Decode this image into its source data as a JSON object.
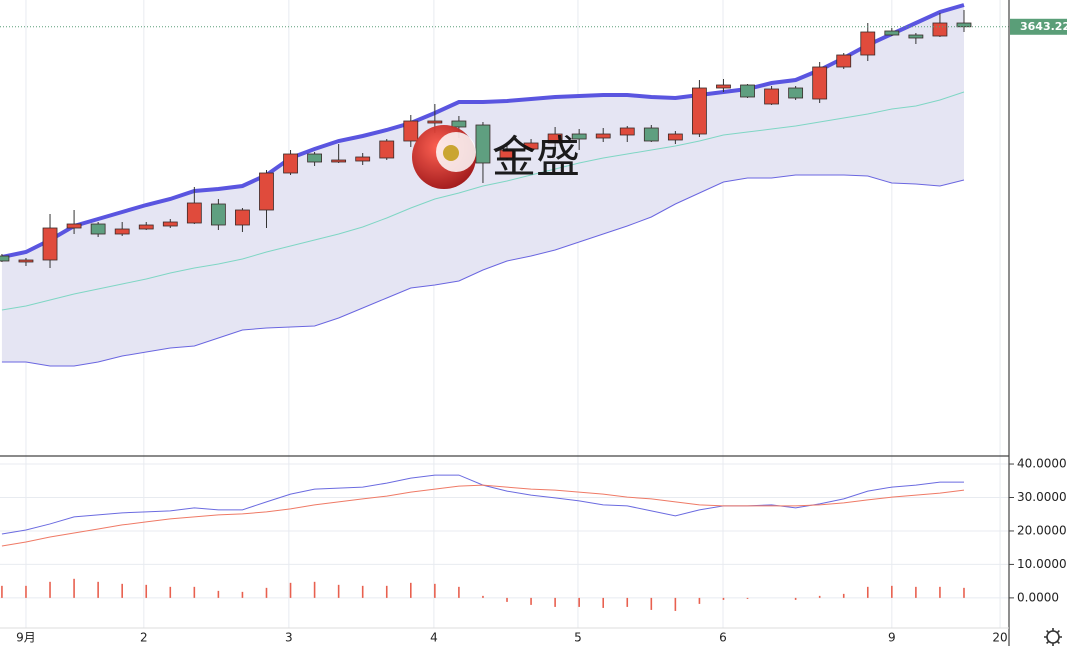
{
  "watermark": "金盛",
  "x_axis": {
    "xlim": [
      -0.08,
      41.83
    ],
    "xticks": [
      {
        "value": 1,
        "label": "9月"
      },
      {
        "value": 5.9,
        "label": "2"
      },
      {
        "value": 11.93,
        "label": "3"
      },
      {
        "value": 17.96,
        "label": "4"
      },
      {
        "value": 23.95,
        "label": "5"
      },
      {
        "value": 29.98,
        "label": "6"
      },
      {
        "value": 37,
        "label": "9"
      },
      {
        "value": 41.5,
        "label": "20"
      }
    ]
  },
  "chart_data": [
    {
      "type": "candlestick",
      "up_color": "#e04b3c",
      "down_color": "#5f9f80",
      "band_fill": "#e5e5f3",
      "ylim": [
        3215,
        3670
      ],
      "price_label": 3643.22,
      "price_label_color": "#5a9e78",
      "open": [
        3414,
        3408,
        3410,
        3442,
        3446,
        3436,
        3441,
        3444,
        3447,
        3466,
        3445,
        3460,
        3497,
        3516,
        3508,
        3509,
        3512,
        3529,
        3547,
        3549,
        3545,
        3512,
        3521,
        3527,
        3536,
        3532,
        3535,
        3542,
        3530,
        3536,
        3582,
        3585,
        3566,
        3582,
        3571,
        3603,
        3615,
        3639,
        3635,
        3634,
        3647
      ],
      "high": [
        3416,
        3412,
        3456,
        3460,
        3448,
        3448,
        3448,
        3451,
        3483,
        3471,
        3462,
        3500,
        3520,
        3518,
        3526,
        3517,
        3531,
        3555,
        3566,
        3554,
        3548,
        3525,
        3531,
        3543,
        3541,
        3542,
        3544,
        3545,
        3539,
        3590,
        3591,
        3586,
        3584,
        3584,
        3608,
        3617,
        3647,
        3642,
        3637,
        3657,
        3660
      ],
      "low": [
        3408,
        3404,
        3402,
        3436,
        3433,
        3434,
        3440,
        3442,
        3446,
        3440,
        3438,
        3442,
        3495,
        3504,
        3507,
        3505,
        3510,
        3523,
        3537,
        3532,
        3487,
        3510,
        3518,
        3515,
        3520,
        3528,
        3528,
        3528,
        3526,
        3533,
        3578,
        3572,
        3565,
        3570,
        3567,
        3601,
        3609,
        3634,
        3626,
        3633,
        3638
      ],
      "close": [
        3409,
        3410,
        3442,
        3446,
        3436,
        3441,
        3445,
        3448,
        3467,
        3445,
        3460,
        3497,
        3516,
        3508,
        3510,
        3513,
        3529,
        3549,
        3549,
        3543,
        3507,
        3520,
        3527,
        3536,
        3531,
        3536,
        3542,
        3529,
        3536,
        3582,
        3585,
        3573,
        3581,
        3572,
        3603,
        3615,
        3638,
        3635,
        3632,
        3647,
        3643.22
      ],
      "overlays": [
        {
          "color": "#5a55e0",
          "values": [
            3413,
            3418,
            3430,
            3444,
            3451,
            3458,
            3465,
            3471,
            3479,
            3481,
            3484,
            3495,
            3512,
            3521,
            3529,
            3534,
            3540,
            3547,
            3557,
            3568,
            3568,
            3569,
            3571,
            3573,
            3574,
            3575,
            3575,
            3573,
            3572,
            3575,
            3578,
            3581,
            3587,
            3590,
            3600,
            3612,
            3625,
            3636,
            3647,
            3658,
            3665
          ]
        },
        {
          "color": "#7fd6c4",
          "values": [
            3360,
            3364,
            3370,
            3376,
            3381,
            3386,
            3391,
            3397,
            3402,
            3406,
            3411,
            3418,
            3424,
            3430,
            3436,
            3443,
            3452,
            3462,
            3471,
            3477,
            3484,
            3489,
            3495,
            3501,
            3507,
            3512,
            3516,
            3520,
            3524,
            3529,
            3535,
            3538,
            3541,
            3544,
            3548,
            3552,
            3556,
            3561,
            3564,
            3570,
            3578
          ]
        },
        {
          "color": "#6a66e0",
          "values": [
            3308,
            3308,
            3304,
            3304,
            3308,
            3314,
            3318,
            3322,
            3324,
            3332,
            3340,
            3342,
            3343,
            3344,
            3352,
            3362,
            3372,
            3382,
            3385,
            3389,
            3400,
            3409,
            3414,
            3420,
            3428,
            3436,
            3444,
            3453,
            3466,
            3477,
            3488,
            3492,
            3492,
            3495,
            3495,
            3495,
            3494,
            3487,
            3486,
            3484,
            3490
          ]
        }
      ]
    },
    {
      "type": "macd",
      "ylim": [
        -9,
        42.1
      ],
      "grid": true,
      "yticks": [
        {
          "value": 40,
          "label": "40.0000"
        },
        {
          "value": 30,
          "label": "30.0000"
        },
        {
          "value": 20,
          "label": "20.0000"
        },
        {
          "value": 10,
          "label": "10.0000"
        },
        {
          "value": 0,
          "label": "0.0000"
        }
      ],
      "histogram": {
        "color": "#e8604f",
        "values": [
          3.6,
          3.6,
          4.8,
          5.7,
          4.8,
          4.2,
          3.9,
          3.3,
          3.3,
          2.1,
          1.8,
          3.0,
          4.5,
          4.8,
          3.9,
          3.6,
          3.6,
          4.5,
          4.2,
          3.3,
          0.6,
          -1.2,
          -2.1,
          -2.7,
          -2.7,
          -3.0,
          -2.7,
          -3.6,
          -3.9,
          -1.8,
          -0.6,
          -0.3,
          0,
          -0.6,
          0.6,
          1.2,
          3.3,
          3.6,
          3.3,
          3.3,
          3.0
        ]
      },
      "series": [
        {
          "color": "#6b6be0",
          "values": [
            19.1,
            20.3,
            22.1,
            24.2,
            24.8,
            25.4,
            25.7,
            26.0,
            26.9,
            26.3,
            26.3,
            28.7,
            31.0,
            32.5,
            32.8,
            33.1,
            34.3,
            35.8,
            36.7,
            36.7,
            33.7,
            31.9,
            30.7,
            29.9,
            29.0,
            27.8,
            27.5,
            26.0,
            24.5,
            26.3,
            27.5,
            27.5,
            27.8,
            26.9,
            28.1,
            29.6,
            31.9,
            33.1,
            33.7,
            34.6,
            34.6
          ]
        },
        {
          "color": "#ef7a66",
          "values": [
            15.5,
            16.7,
            18.2,
            19.4,
            20.6,
            21.8,
            22.7,
            23.6,
            24.2,
            24.8,
            25.1,
            25.7,
            26.6,
            27.8,
            28.7,
            29.6,
            30.4,
            31.6,
            32.5,
            33.4,
            33.7,
            33.1,
            32.5,
            32.2,
            31.6,
            31.0,
            30.1,
            29.6,
            28.7,
            27.8,
            27.5,
            27.5,
            27.5,
            27.5,
            27.8,
            28.4,
            29.3,
            30.1,
            30.7,
            31.3,
            32.2
          ]
        }
      ]
    }
  ]
}
